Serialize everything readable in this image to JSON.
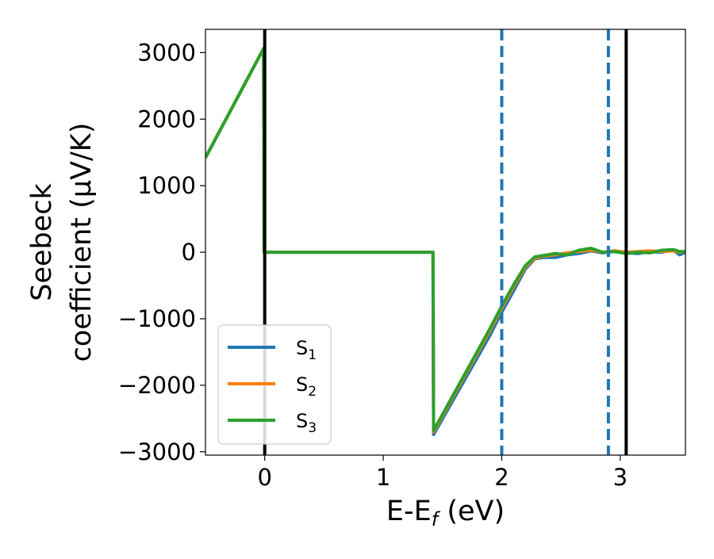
{
  "chart_data": {
    "type": "line",
    "title": "",
    "xlabel_main": "E-E",
    "xlabel_sub": "f",
    "xlabel_tail": " (eV)",
    "ylabel_line1": "Seebeck",
    "ylabel_line2": "coefficient  (μV/K)",
    "xlim": [
      -0.5,
      3.55
    ],
    "ylim": [
      -3050,
      3350
    ],
    "xticks": [
      0,
      1,
      2,
      3
    ],
    "xtick_labels": [
      "0",
      "1",
      "2",
      "3"
    ],
    "yticks": [
      -3000,
      -2000,
      -1000,
      0,
      1000,
      2000,
      3000
    ],
    "ytick_labels": [
      "−3000",
      "−2000",
      "−1000",
      "0",
      "1000",
      "2000",
      "3000"
    ],
    "grid": false,
    "legend_position": "lower-left",
    "vlines": [
      {
        "x": 0.0,
        "style": "solid",
        "color": "#000000"
      },
      {
        "x": 3.05,
        "style": "solid",
        "color": "#000000"
      },
      {
        "x": 2.0,
        "style": "dashed",
        "color": "#1f77b4"
      },
      {
        "x": 2.9,
        "style": "dashed",
        "color": "#1f77b4"
      }
    ],
    "series": [
      {
        "name_main": "S",
        "name_sub": "1",
        "color": "#1f77b4",
        "points": [
          [
            -0.5,
            1420
          ],
          [
            -0.01,
            3060
          ],
          [
            -0.005,
            0
          ],
          [
            1.42,
            0
          ],
          [
            1.425,
            -2740
          ],
          [
            1.9,
            -1250
          ],
          [
            2.0,
            -900
          ],
          [
            2.1,
            -580
          ],
          [
            2.2,
            -250
          ],
          [
            2.28,
            -100
          ],
          [
            2.35,
            -80
          ],
          [
            2.45,
            -80
          ],
          [
            2.55,
            -40
          ],
          [
            2.65,
            -20
          ],
          [
            2.75,
            20
          ],
          [
            2.85,
            -10
          ],
          [
            2.95,
            10
          ],
          [
            3.05,
            -10
          ],
          [
            3.15,
            -20
          ],
          [
            3.25,
            10
          ],
          [
            3.35,
            0
          ],
          [
            3.45,
            30
          ],
          [
            3.5,
            -40
          ],
          [
            3.55,
            0
          ]
        ]
      },
      {
        "name_main": "S",
        "name_sub": "2",
        "color": "#ff7f0e",
        "points": [
          [
            -0.5,
            1420
          ],
          [
            -0.01,
            3060
          ],
          [
            -0.005,
            0
          ],
          [
            1.42,
            0
          ],
          [
            1.425,
            -2700
          ],
          [
            1.9,
            -1180
          ],
          [
            2.0,
            -840
          ],
          [
            2.1,
            -520
          ],
          [
            2.2,
            -220
          ],
          [
            2.28,
            -90
          ],
          [
            2.35,
            -60
          ],
          [
            2.45,
            -40
          ],
          [
            2.55,
            -10
          ],
          [
            2.65,
            10
          ],
          [
            2.75,
            30
          ],
          [
            2.85,
            0
          ],
          [
            2.95,
            20
          ],
          [
            3.05,
            0
          ],
          [
            3.15,
            10
          ],
          [
            3.25,
            20
          ],
          [
            3.35,
            10
          ],
          [
            3.45,
            20
          ],
          [
            3.5,
            0
          ],
          [
            3.55,
            10
          ]
        ]
      },
      {
        "name_main": "S",
        "name_sub": "3",
        "color": "#2ca02c",
        "points": [
          [
            -0.5,
            1420
          ],
          [
            -0.01,
            3060
          ],
          [
            -0.005,
            0
          ],
          [
            1.42,
            0
          ],
          [
            1.425,
            -2680
          ],
          [
            1.9,
            -1150
          ],
          [
            2.0,
            -810
          ],
          [
            2.1,
            -490
          ],
          [
            2.2,
            -200
          ],
          [
            2.28,
            -70
          ],
          [
            2.35,
            -50
          ],
          [
            2.45,
            -20
          ],
          [
            2.55,
            -40
          ],
          [
            2.65,
            30
          ],
          [
            2.75,
            60
          ],
          [
            2.85,
            0
          ],
          [
            2.95,
            10
          ],
          [
            3.05,
            -20
          ],
          [
            3.15,
            0
          ],
          [
            3.25,
            -10
          ],
          [
            3.35,
            30
          ],
          [
            3.45,
            40
          ],
          [
            3.5,
            10
          ],
          [
            3.55,
            10
          ]
        ]
      }
    ]
  }
}
